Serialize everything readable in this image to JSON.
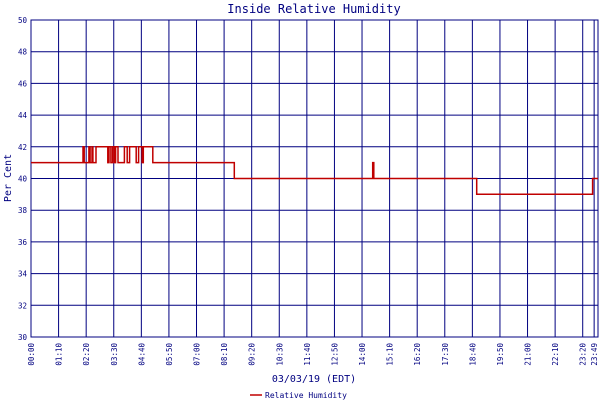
{
  "chart_data": {
    "type": "line",
    "title": "Inside Relative Humidity",
    "xlabel": "03/03/19 (EDT)",
    "ylabel": "Per Cent",
    "ylim": [
      30,
      50
    ],
    "y_ticks": [
      "30",
      "32",
      "34",
      "36",
      "38",
      "40",
      "42",
      "44",
      "46",
      "48",
      "50"
    ],
    "x_ticks": [
      "00:00",
      "01:10",
      "02:20",
      "03:30",
      "04:40",
      "05:50",
      "07:00",
      "08:10",
      "09:20",
      "10:30",
      "11:40",
      "12:50",
      "14:00",
      "15:10",
      "16:20",
      "17:30",
      "18:40",
      "19:50",
      "21:00",
      "22:10",
      "23:20",
      "23:49"
    ],
    "grid": true,
    "legend_position": "bottom-center",
    "colors": {
      "series": "#c00000",
      "grid": "#000080",
      "text": "#000080"
    },
    "series": [
      {
        "name": "Relative Humidity",
        "x_hours": [
          0,
          2.2,
          2.2,
          2.25,
          2.25,
          2.45,
          2.45,
          2.5,
          2.5,
          2.58,
          2.58,
          2.62,
          2.62,
          2.75,
          2.75,
          3.25,
          3.25,
          3.3,
          3.3,
          3.38,
          3.38,
          3.45,
          3.45,
          3.52,
          3.52,
          3.58,
          3.58,
          3.68,
          3.68,
          3.95,
          3.95,
          4.07,
          4.07,
          4.17,
          4.17,
          4.45,
          4.45,
          4.55,
          4.55,
          4.7,
          4.7,
          4.75,
          4.75,
          5.15,
          5.15,
          8.6,
          8.6,
          14.45,
          14.45,
          14.5,
          14.5,
          14.58,
          14.58,
          18.85,
          18.85,
          23.75,
          23.75,
          23.98
        ],
        "values": [
          41,
          41,
          42,
          42,
          41,
          41,
          42,
          42,
          41,
          41,
          42,
          42,
          41,
          41,
          42,
          42,
          41,
          41,
          42,
          42,
          41,
          41,
          42,
          42,
          41,
          41,
          42,
          42,
          41,
          41,
          42,
          42,
          41,
          41,
          42,
          42,
          41,
          41,
          42,
          42,
          41,
          41,
          42,
          42,
          41,
          41,
          40,
          40,
          41,
          41,
          40,
          40,
          40,
          40,
          39,
          39,
          40,
          40
        ]
      }
    ]
  }
}
